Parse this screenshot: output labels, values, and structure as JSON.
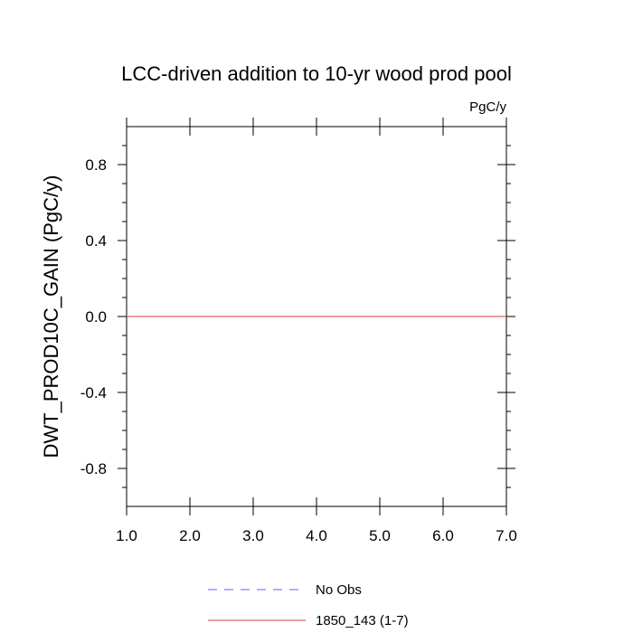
{
  "chart_data": {
    "type": "line",
    "title": "LCC-driven addition to 10-yr wood prod pool",
    "units_label": "PgC/y",
    "xlabel": "",
    "ylabel": "DWT_PROD10C_GAIN  (PgC/y)",
    "xlim": [
      1.0,
      7.0
    ],
    "ylim": [
      -1.0,
      1.0
    ],
    "x_ticks": [
      1.0,
      2.0,
      3.0,
      4.0,
      5.0,
      6.0,
      7.0
    ],
    "x_tick_labels": [
      "1.0",
      "2.0",
      "3.0",
      "4.0",
      "5.0",
      "6.0",
      "7.0"
    ],
    "y_ticks": [
      -0.8,
      -0.4,
      0.0,
      0.4,
      0.8
    ],
    "y_tick_labels": [
      "-0.8",
      "-0.4",
      "0.0",
      "0.4",
      "0.8"
    ],
    "grid": false,
    "legend_position": "bottom-center",
    "series": [
      {
        "name": "No Obs",
        "color": "#8080ff",
        "style": "dashed",
        "x": [],
        "y": []
      },
      {
        "name": "1850_143 (1-7)",
        "color": "#e06060",
        "style": "solid",
        "x": [
          1.0,
          2.0,
          3.0,
          4.0,
          5.0,
          6.0,
          7.0
        ],
        "y": [
          0.0,
          0.0,
          0.0,
          0.0,
          0.0,
          0.0,
          0.0
        ]
      }
    ]
  }
}
